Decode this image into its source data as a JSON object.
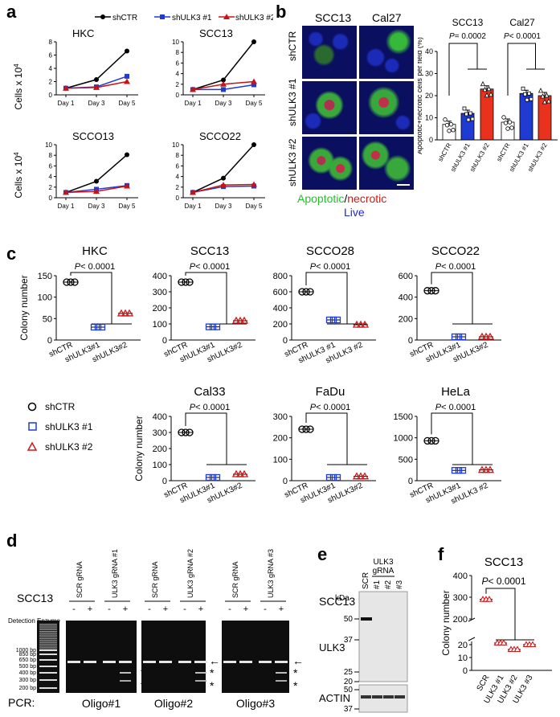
{
  "panel_labels": {
    "a": "a",
    "b": "b",
    "c": "c",
    "d": "d",
    "e": "e",
    "f": "f"
  },
  "panel_a": {
    "legend": [
      "shCTR",
      "shULK3 #1",
      "shULK3 #2"
    ],
    "ylabel": "Cells x 10",
    "ylabel_exp": "4",
    "series_colors": [
      "#000000",
      "#1f3bd1",
      "#c81414"
    ],
    "x_ticks": [
      "Day 1",
      "Day 3",
      "Day 5"
    ]
  },
  "panel_b": {
    "columns": [
      "SCC13",
      "Cal27"
    ],
    "rows": [
      "shCTR",
      "shULK3 #1",
      "shULK3 #2"
    ],
    "caption_apoptotic": "Apoptotic",
    "caption_slash": "/",
    "caption_necrotic": "necrotic",
    "caption_live": "Live",
    "bar_title_1": "SCC13",
    "bar_title_2": "Cal27",
    "p1": "= 0.0002",
    "p2": "< 0.0001",
    "p_italic": "P",
    "ylabel": "Apoptotic+necrotic cells per field (%)",
    "xticks": [
      "shCTR",
      "shULK3 #1",
      "shULK3 #2",
      "shCTR",
      "shULK3 #1",
      "shULK3 #2"
    ],
    "y_ticks": [
      "0",
      "10",
      "20",
      "30",
      "40"
    ]
  },
  "panel_c": {
    "ylabel": "Colony number",
    "p_text": "< 0.0001",
    "p_italic": "P",
    "xticks": [
      "shCTR",
      "shULK3#1",
      "shULK3#2"
    ],
    "xticks_alt": [
      "shCTR",
      "shULK3 #1",
      "shULK3 #2"
    ],
    "legend": [
      "shCTR",
      "shULK3 #1",
      "shULK3 #2"
    ]
  },
  "panel_d": {
    "cell": "SCC13",
    "detection": "Detection Enzyme",
    "pcr": "PCR:",
    "lane_headers": [
      "SCR gRNA",
      "ULK3 gRNA #1",
      "SCR gRNA",
      "ULK3 gRNA #2",
      "SCR gRNA",
      "ULK3 gRNA #3"
    ],
    "oligos": [
      "Oligo#1",
      "Oligo#2",
      "Oligo#3"
    ],
    "minus": "-",
    "plus": "+",
    "ladder": [
      "1000 bp",
      "850 bp",
      "650 bp",
      "500 bp",
      "400 bp",
      "300 bp",
      "200 bp"
    ],
    "star": "*",
    "arrow": "←"
  },
  "panel_e": {
    "cell": "SCC13",
    "header_top": "ULK3",
    "header_bottom": "gRNA",
    "lanes": [
      "SCR",
      "#1",
      "#2",
      "#3"
    ],
    "kda": "kDa",
    "markers_top": [
      "50",
      "37",
      "25",
      "20"
    ],
    "markers_bottom": [
      "50",
      "37"
    ],
    "protein1": "ULK3",
    "protein2": "ACTIN"
  },
  "panel_f": {
    "title": "SCC13",
    "p_italic": "P",
    "p_text": "< 0.0001",
    "ylabel": "Colony number",
    "xticks": [
      "SCR",
      "ULK3 #1",
      "ULK3 #2",
      "ULK3 #3"
    ],
    "y_ticks": [
      "0",
      "10",
      "20",
      "200",
      "300",
      "400"
    ]
  },
  "chart_data": [
    {
      "type": "line",
      "title": "HKC",
      "x": [
        "Day 1",
        "Day 3",
        "Day 5"
      ],
      "ylim": [
        0,
        8
      ],
      "ylabel": "Cells x 10^4",
      "series": [
        {
          "name": "shCTR",
          "values": [
            1,
            2.3,
            6.6
          ]
        },
        {
          "name": "shULK3 #1",
          "values": [
            1,
            1.2,
            2.8
          ]
        },
        {
          "name": "shULK3 #2",
          "values": [
            1,
            1.1,
            2.0
          ]
        }
      ]
    },
    {
      "type": "line",
      "title": "SCC13",
      "x": [
        "Day 1",
        "Day 3",
        "Day 5"
      ],
      "ylim": [
        0,
        10
      ],
      "series": [
        {
          "name": "shCTR",
          "values": [
            1,
            2.8,
            10
          ]
        },
        {
          "name": "shULK3 #1",
          "values": [
            1,
            1.0,
            1.9
          ]
        },
        {
          "name": "shULK3 #2",
          "values": [
            1,
            2.0,
            2.5
          ]
        }
      ]
    },
    {
      "type": "line",
      "title": "SCCO13",
      "x": [
        "Day 1",
        "Day 3",
        "Day 5"
      ],
      "ylim": [
        0,
        10
      ],
      "ylabel": "Cells x 10^4",
      "series": [
        {
          "name": "shCTR",
          "values": [
            1,
            3.1,
            8.1
          ]
        },
        {
          "name": "shULK3 #1",
          "values": [
            1,
            1.6,
            2.3
          ]
        },
        {
          "name": "shULK3 #2",
          "values": [
            1,
            1.2,
            2.2
          ]
        }
      ]
    },
    {
      "type": "line",
      "title": "SCCO22",
      "x": [
        "Day 1",
        "Day 3",
        "Day 5"
      ],
      "ylim": [
        0,
        10
      ],
      "series": [
        {
          "name": "shCTR",
          "values": [
            1,
            3.7,
            10.1
          ]
        },
        {
          "name": "shULK3 #1",
          "values": [
            1,
            2.1,
            2.2
          ]
        },
        {
          "name": "shULK3 #2",
          "values": [
            1,
            2.4,
            2.5
          ]
        }
      ]
    },
    {
      "type": "bar",
      "title": "Apoptotic+necrotic cells per field",
      "categories": [
        "SCC13 shCTR",
        "SCC13 shULK3 #1",
        "SCC13 shULK3 #2",
        "Cal27 shCTR",
        "Cal27 shULK3 #1",
        "Cal27 shULK3 #2"
      ],
      "values": [
        7,
        12,
        23,
        8,
        21,
        20
      ],
      "ylim": [
        0,
        40
      ],
      "colors": [
        "#ffffff",
        "#1f3bd1",
        "#e8321e",
        "#ffffff",
        "#1f3bd1",
        "#e8321e"
      ]
    },
    {
      "type": "scatter",
      "title": "HKC",
      "categories": [
        "shCTR",
        "shULK3#1",
        "shULK3#2"
      ],
      "values": [
        135,
        30,
        62
      ],
      "ylim": [
        0,
        150
      ],
      "y_ticks": [
        0,
        50,
        100,
        150
      ]
    },
    {
      "type": "scatter",
      "title": "SCC13",
      "categories": [
        "shCTR",
        "shULK3#1",
        "shULK3#2"
      ],
      "values": [
        360,
        82,
        120
      ],
      "ylim": [
        0,
        400
      ],
      "y_ticks": [
        0,
        100,
        200,
        300,
        400
      ]
    },
    {
      "type": "scatter",
      "title": "SCCO28",
      "categories": [
        "shCTR",
        "shULK3 #1",
        "shULK3 #2"
      ],
      "values": [
        600,
        250,
        190
      ],
      "ylim": [
        0,
        800
      ],
      "y_ticks": [
        0,
        200,
        400,
        600,
        800
      ]
    },
    {
      "type": "scatter",
      "title": "SCCO22",
      "categories": [
        "shCTR",
        "shULK3#1",
        "shULK3#2"
      ],
      "values": [
        460,
        30,
        30
      ],
      "ylim": [
        0,
        600
      ],
      "y_ticks": [
        0,
        200,
        400,
        600
      ]
    },
    {
      "type": "scatter",
      "title": "Cal33",
      "categories": [
        "shCTR",
        "shULK3#1",
        "shULK3#2"
      ],
      "values": [
        300,
        20,
        40
      ],
      "ylim": [
        0,
        400
      ],
      "y_ticks": [
        0,
        100,
        200,
        300,
        400
      ]
    },
    {
      "type": "scatter",
      "title": "FaDu",
      "categories": [
        "shCTR",
        "shULK3#1",
        "shULK3#2"
      ],
      "values": [
        240,
        15,
        20
      ],
      "ylim": [
        0,
        300
      ],
      "y_ticks": [
        0,
        100,
        200,
        300
      ]
    },
    {
      "type": "scatter",
      "title": "HeLa",
      "categories": [
        "shCTR",
        "shULK3#1",
        "shULK3 #2"
      ],
      "values": [
        930,
        240,
        250
      ],
      "ylim": [
        0,
        1500
      ],
      "y_ticks": [
        0,
        500,
        1000,
        1500
      ]
    },
    {
      "type": "scatter",
      "title": "SCC13",
      "categories": [
        "SCR",
        "ULK3 #1",
        "ULK3 #2",
        "ULK3 #3"
      ],
      "values": [
        290,
        45,
        22,
        38
      ]
    }
  ]
}
